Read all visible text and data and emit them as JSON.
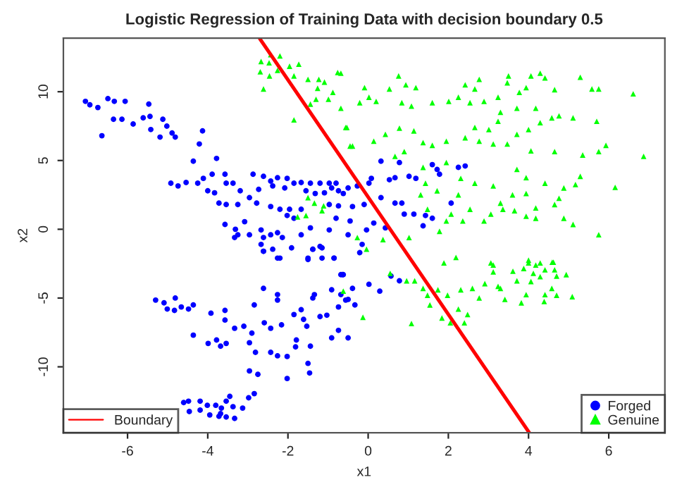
{
  "chart_data": {
    "type": "scatter",
    "title": "Logistic Regression of Training Data with decision boundary 0.5",
    "xlabel": "x1",
    "ylabel": "x2",
    "xlim": [
      -7.6,
      7.4
    ],
    "ylim": [
      -14.8,
      13.9
    ],
    "xticks": [
      -6,
      -4,
      -2,
      0,
      2,
      4,
      6
    ],
    "yticks": [
      -10,
      -5,
      0,
      5,
      10
    ],
    "grid": false,
    "legend": "bottom",
    "series": [
      {
        "name": "Forged",
        "marker": "circle",
        "color": "#0000ff",
        "x": [
          -7.05,
          -6.94,
          -6.74,
          -6.64,
          -6.49,
          -6.33,
          -6.35,
          -6.06,
          -6.14,
          -5.86,
          -5.61,
          -5.47,
          -5.44,
          -5.42,
          -5.19,
          -5.12,
          -5.02,
          -4.89,
          -4.81,
          -4.13,
          -4.21,
          -4.36,
          -3.78,
          -4.92,
          -4.74,
          -4.54,
          -4.25,
          -4.11,
          -3.89,
          -4.0,
          -3.83,
          -3.72,
          -3.54,
          -3.37,
          -3.57,
          -3.19,
          -3.54,
          -3.25,
          -2.96,
          -2.78,
          -2.87,
          -2.61,
          -2.43,
          -2.26,
          -2.02,
          -1.85,
          -1.67,
          -1.44,
          -1.2,
          -0.97,
          -0.8,
          -0.74,
          -0.91,
          -1.09,
          -1.32,
          -1.55,
          -2.73,
          -2.38,
          -2.08,
          -2.43,
          -2.2,
          -1.96,
          -1.67,
          -2.02,
          -1.85,
          -0.97,
          -0.74,
          -3.57,
          -3.31,
          -3.08,
          -3.25,
          -3.33,
          -2.96,
          -2.67,
          -2.61,
          -2.43,
          -2.26,
          -2.14,
          -2.61,
          -2.38,
          -2.2,
          -2.67,
          -1.67,
          -1.44,
          -1.38,
          -1.2,
          -1.5,
          -1.15,
          -0.97,
          -0.8,
          -0.85,
          0.32,
          0.78,
          0.67,
          0.53,
          0.08,
          0.02,
          -0.27,
          -0.5,
          -0.62,
          1.02,
          1.19,
          1.72,
          1.78,
          2.25,
          2.42,
          1.6,
          -0.39,
          -0.1,
          0.32,
          0.67,
          0.84,
          0.9,
          1.14,
          1.43,
          1.6,
          2.07,
          1.37,
          0.14,
          -0.04,
          -0.45,
          -0.5,
          -0.15,
          0.43,
          -0.21,
          0.02,
          0.29,
          0.78,
          0.57,
          -0.33,
          -0.5,
          -0.56,
          -0.62,
          -0.39,
          -2.26,
          -2.61,
          -1.91,
          -1.38,
          -1.15,
          -1.5,
          -0.85,
          -0.68,
          -0.91,
          -0.68,
          -0.5,
          -5.3,
          -5.09,
          -5.01,
          -4.81,
          -4.83,
          -4.66,
          -4.48,
          -4.36,
          -4.36,
          -3.92,
          -3.99,
          -3.78,
          -3.68,
          -3.57,
          -3.57,
          -3.54,
          -3.33,
          -3.1,
          -2.9,
          -2.96,
          -2.81,
          -2.96,
          -2.75,
          -2.84,
          -2.61,
          -2.59,
          -2.43,
          -2.26,
          -2.26,
          -2.43,
          -2.26,
          -2.16,
          -2.02,
          -2.02,
          -1.85,
          -1.81,
          -1.79,
          -1.67,
          -1.61,
          -1.53,
          -1.5,
          -1.46,
          -1.44,
          -1.38,
          -1.34,
          -1.2,
          -1.03,
          -0.91,
          -0.74,
          -0.64,
          -0.74,
          -4.6,
          -4.48,
          -4.46,
          -4.19,
          -4.01,
          -3.95,
          -3.8,
          -3.66,
          -3.68,
          -3.54,
          -3.45,
          -3.37,
          -3.54,
          -3.33,
          -3.13,
          -2.98,
          -2.84,
          -4.19,
          -3.72
        ],
        "values": [
          9.3,
          9.05,
          8.85,
          6.8,
          9.5,
          9.3,
          8.0,
          9.3,
          8.0,
          7.65,
          8.1,
          9.1,
          8.2,
          7.25,
          6.7,
          8.0,
          7.5,
          7.0,
          6.7,
          7.15,
          6.2,
          4.95,
          5.15,
          3.35,
          3.15,
          3.4,
          3.35,
          3.7,
          4.0,
          2.8,
          2.65,
          1.9,
          3.35,
          3.35,
          4.0,
          2.8,
          1.8,
          1.8,
          2.3,
          1.9,
          4.0,
          3.85,
          3.5,
          3.75,
          3.7,
          3.35,
          3.4,
          3.35,
          3.35,
          3.35,
          3.35,
          2.8,
          3.0,
          2.65,
          2.6,
          2.8,
          2.9,
          3.15,
          3.0,
          1.65,
          1.45,
          1.45,
          1.45,
          1.0,
          0.8,
          1.8,
          1.7,
          0.35,
          0.0,
          0.55,
          -0.4,
          -0.6,
          -0.4,
          -0.05,
          -0.6,
          -0.4,
          -0.25,
          -0.6,
          -1.6,
          -1.45,
          -2.1,
          -1.1,
          -0.4,
          0.1,
          -1.45,
          -1.25,
          -2.1,
          -2.1,
          -0.05,
          0.8,
          -2.1,
          4.95,
          4.85,
          3.75,
          3.6,
          3.7,
          3.35,
          3.15,
          3.0,
          2.6,
          3.85,
          3.7,
          4.35,
          4.0,
          4.5,
          4.6,
          4.7,
          1.65,
          1.8,
          2.3,
          1.9,
          1.9,
          1.1,
          1.1,
          1.0,
          0.8,
          1.9,
          0.25,
          0.45,
          -0.05,
          0.6,
          -0.4,
          -1.1,
          0.1,
          -1.7,
          -4.0,
          -4.5,
          -3.75,
          -3.4,
          -5.5,
          -7.9,
          -5.15,
          -3.3,
          -4.3,
          -2.1,
          -1.6,
          -1.35,
          -1.45,
          -1.35,
          -2.2,
          -2.1,
          -3.3,
          -4.4,
          -4.75,
          -5.1,
          -5.15,
          -5.35,
          -5.8,
          -5.0,
          -5.9,
          -5.65,
          -5.8,
          -5.5,
          -7.7,
          -6.1,
          -8.3,
          -8.05,
          -8.5,
          -5.9,
          -6.6,
          -8.3,
          -7.2,
          -7.05,
          -7.55,
          -8.25,
          -8.95,
          -10.3,
          -10.55,
          -5.5,
          -4.3,
          -6.8,
          -7.2,
          -5.15,
          -4.75,
          -8.95,
          -9.2,
          -6.95,
          -9.25,
          -10.85,
          -6.2,
          -8.55,
          -8.05,
          -5.85,
          -6.55,
          -7.05,
          -9.75,
          -10.45,
          -8.5,
          -5.0,
          -4.75,
          -6.35,
          -6.25,
          -7.9,
          -7.35,
          -3.3,
          -5.65,
          -12.6,
          -12.5,
          -13.25,
          -12.5,
          -12.8,
          -13.5,
          -12.8,
          -13.0,
          -13.4,
          -12.5,
          -12.15,
          -12.9,
          -13.65,
          -13.75,
          -13.0,
          -12.25,
          -11.95,
          -13.15,
          -13.6
        ]
      },
      {
        "name": "Genuine",
        "marker": "triangle",
        "color": "#00ff00",
        "x": [
          -2.67,
          -2.43,
          -2.2,
          -2.47,
          -2.69,
          -2.46,
          -2.26,
          -2.61,
          -1.96,
          -1.73,
          -1.85,
          -1.5,
          -1.23,
          -1.09,
          -0.76,
          -1.26,
          -0.88,
          -0.99,
          -1.3,
          -1.44,
          -0.68,
          -1.85,
          -0.53,
          -0.45,
          -1.5,
          -1.34,
          -1.11,
          -1.15,
          -1.55,
          -1.76,
          -0.68,
          -0.09,
          0.53,
          0.76,
          0.94,
          1.19,
          0.02,
          -0.21,
          0.2,
          0.84,
          1.08,
          1.6,
          2.01,
          2.42,
          2.25,
          2.77,
          2.66,
          2.54,
          2.89,
          3.24,
          3.5,
          3.47,
          3.77,
          3.94,
          4.06,
          4.29,
          4.41,
          4.65,
          4.18,
          3.71,
          3.3,
          5.29,
          5.58,
          5.75,
          6.61,
          5.7,
          5.11,
          4.76,
          4.58,
          4.29,
          4.0,
          3.71,
          3.24,
          3.01,
          2.66,
          2.77,
          3.12,
          3.47,
          4.06,
          4.65,
          5.35,
          5.75,
          5.93,
          6.87,
          2.42,
          1.95,
          1.6,
          1.37,
          1.14,
          0.78,
          0.43,
          0.14,
          -0.39,
          -0.56,
          0.9,
          0.67,
          1.37,
          1.95,
          2.31,
          2.66,
          3.12,
          3.71,
          3.94,
          4.41,
          4.88,
          5.29,
          6.16,
          3.6,
          3.94,
          4.76,
          5.17,
          4.18,
          3.36,
          3.65,
          3.94,
          4.18,
          3.06,
          2.89,
          3.3,
          4.88,
          5.11,
          4.65,
          5.75,
          2.07,
          1.95,
          1.78,
          2.36,
          2.54,
          2.25,
          1.72,
          1.43,
          1.31,
          1.89,
          2.19,
          3.06,
          4.0,
          4.29,
          4.62,
          0.37,
          -0.04,
          1.02,
          -0.27,
          1.48,
          0.55,
          0.96,
          1.16,
          1.37,
          1.48,
          1.74,
          1.98,
          1.54,
          1.84,
          2.05,
          2.25,
          2.48,
          2.4,
          1.08,
          -0.13,
          2.31,
          2.6,
          2.77,
          3.12,
          3.12,
          2.91,
          3.3,
          3.41,
          3.61,
          3.71,
          3.82,
          3.94,
          4.0,
          3.88,
          4.18,
          4.12,
          4.29,
          4.41,
          4.39,
          4.59,
          4.65,
          4.7,
          4.94,
          4.7,
          5.09,
          4.58,
          4.41,
          4.06,
          3.24,
          -0.62
        ],
        "values": [
          12.2,
          12.7,
          12.6,
          12.1,
          11.45,
          11.15,
          11.55,
          10.2,
          11.85,
          12.0,
          11.15,
          10.9,
          10.9,
          10.7,
          11.4,
          10.25,
          9.95,
          9.45,
          9.45,
          9.1,
          8.8,
          7.95,
          7.4,
          6.05,
          2.3,
          1.9,
          1.7,
          1.35,
          1.0,
          0.9,
          11.35,
          10.3,
          10.2,
          11.15,
          10.5,
          10.3,
          9.6,
          9.2,
          9.3,
          9.2,
          8.95,
          9.2,
          9.3,
          10.5,
          9.6,
          10.9,
          10.2,
          9.2,
          9.3,
          9.6,
          11.15,
          10.65,
          9.95,
          10.3,
          11.15,
          11.35,
          11.0,
          10.15,
          8.8,
          8.8,
          8.5,
          11.05,
          10.2,
          10.2,
          9.85,
          7.85,
          8.1,
          8.25,
          8.1,
          7.75,
          7.25,
          6.9,
          7.85,
          7.25,
          7.4,
          6.4,
          6.2,
          6.2,
          5.7,
          5.65,
          5.4,
          5.65,
          6.1,
          5.3,
          6.65,
          6.4,
          6.1,
          6.3,
          7.15,
          7.35,
          6.9,
          6.4,
          6.05,
          7.4,
          5.65,
          5.3,
          4.5,
          4.85,
          3.7,
          3.35,
          3.15,
          4.35,
          3.75,
          3.35,
          3.0,
          3.85,
          3.05,
          2.5,
          2.6,
          2.25,
          3.25,
          1.55,
          1.45,
          1.35,
          0.95,
          0.8,
          1.1,
          0.6,
          1.9,
          0.8,
          0.35,
          1.8,
          -0.4,
          1.1,
          0.6,
          -0.15,
          0.6,
          1.45,
          2.5,
          2.8,
          3.35,
          2.5,
          -2.45,
          -2.05,
          -2.45,
          -2.25,
          -2.45,
          -2.4,
          -0.75,
          -1.45,
          -0.6,
          -0.6,
          1.45,
          -3.2,
          -3.75,
          -3.75,
          -4.3,
          -4.8,
          -4.4,
          -4.8,
          -5.5,
          -6.45,
          -6.8,
          -5.8,
          -6.2,
          -6.8,
          -6.85,
          -6.4,
          -4.4,
          -4.3,
          -5.0,
          -2.6,
          -3.1,
          -3.95,
          -4.3,
          -5.1,
          -3.05,
          -3.75,
          -5.35,
          -4.75,
          -2.45,
          -2.85,
          -2.6,
          -3.2,
          -3.45,
          -4.75,
          -5.25,
          -2.4,
          -2.95,
          -3.4,
          -3.3,
          -4.8,
          -4.9,
          -4.3,
          -2.95,
          -3.8,
          -4.15,
          -4.5
        ]
      },
      {
        "name": "Boundary",
        "type": "line",
        "color": "#ff0000",
        "x": [
          -2.7,
          4.02
        ],
        "values": [
          13.85,
          -14.8
        ]
      }
    ]
  }
}
